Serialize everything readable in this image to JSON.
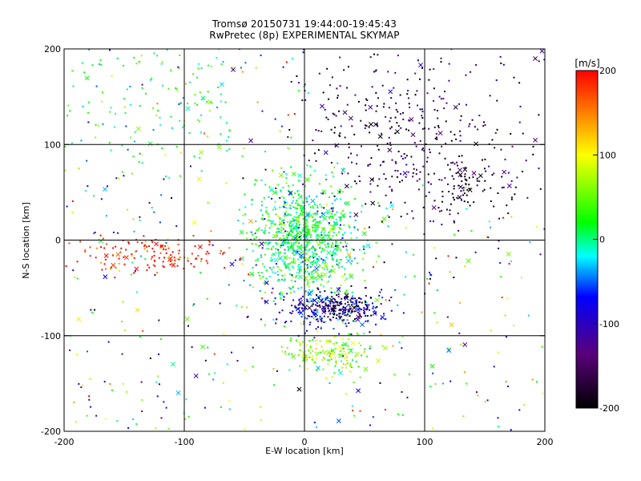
{
  "chart_data": {
    "type": "scatter",
    "title": "Tromsø 20150731 19:44:00-19:45:43",
    "subtitle": "RwPretec (8p) EXPERIMENTAL SKYMAP",
    "xlabel": "E-W location [km]",
    "ylabel": "N-S location [km]",
    "xlim": [
      -200,
      200
    ],
    "ylim": [
      -200,
      200
    ],
    "xticks": [
      "-200",
      "-100",
      "0",
      "100",
      "200"
    ],
    "yticks": [
      "-200",
      "-100",
      "0",
      "100",
      "200"
    ],
    "grid": true,
    "grid_lines": [
      -100,
      0,
      100
    ],
    "markers": [
      "dot",
      "cross"
    ],
    "colorbar": {
      "label": "[m/s]",
      "range": [
        -200,
        200
      ],
      "ticks": [
        "200",
        "100",
        "0",
        "-100",
        "-200"
      ],
      "colors": [
        "#000000",
        "#5a007a",
        "#0000ff",
        "#00ffff",
        "#00ff00",
        "#ffff00",
        "#ff0000"
      ]
    },
    "clusters": [
      {
        "region": "center",
        "x": 0,
        "y": 0,
        "spread": [
          22,
          30
        ],
        "count": 900,
        "velocity": 10
      },
      {
        "region": "south-center",
        "x": 20,
        "y": -72,
        "spread": [
          22,
          10
        ],
        "count": 260,
        "velocity": -90
      },
      {
        "region": "south-center-dark",
        "x": 35,
        "y": -70,
        "spread": [
          12,
          8
        ],
        "count": 90,
        "velocity": -190
      },
      {
        "region": "south",
        "x": 20,
        "y": -118,
        "spread": [
          18,
          10
        ],
        "count": 160,
        "velocity": 60
      },
      {
        "region": "west",
        "x": -130,
        "y": -15,
        "spread": [
          35,
          10
        ],
        "count": 140,
        "velocity": 195
      },
      {
        "region": "northeast",
        "x": 80,
        "y": 100,
        "spread": [
          40,
          45
        ],
        "count": 320,
        "velocity": -160
      },
      {
        "region": "east",
        "x": 140,
        "y": 55,
        "spread": [
          22,
          15
        ],
        "count": 80,
        "velocity": -200
      },
      {
        "region": "northwest",
        "x": -120,
        "y": 140,
        "spread": [
          45,
          40
        ],
        "count": 140,
        "velocity": 15
      },
      {
        "region": "background",
        "x": 0,
        "y": 0,
        "spread": [
          100,
          100
        ],
        "count": 500,
        "velocity": 0
      }
    ]
  }
}
